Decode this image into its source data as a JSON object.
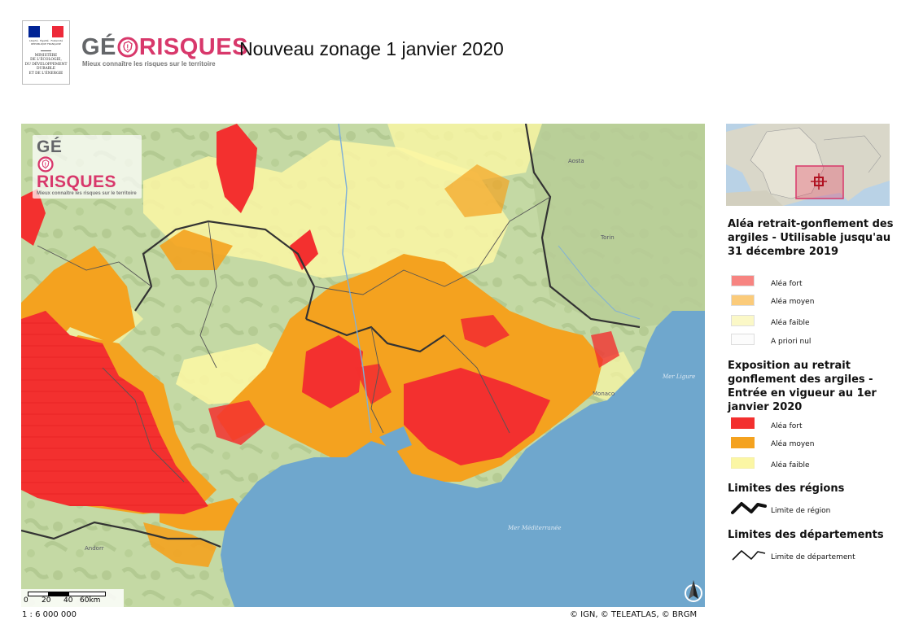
{
  "header": {
    "ministry": {
      "mottos": "Liberté · Égalité · Fraternité",
      "republic": "RÉPUBLIQUE FRANÇAISE",
      "name_lines": [
        "MINISTÈRE",
        "DE L'ÉCOLOGIE,",
        "DU DÉVELOPPEMENT",
        "DURABLE",
        "ET DE L'ÉNERGIE"
      ],
      "flag_colors": [
        "#002395",
        "#ffffff",
        "#ed2939"
      ]
    },
    "logo": {
      "part1": "GÉ",
      "part2": "RISQUES",
      "tagline": "Mieux connaître les risques sur le territoire",
      "colors": {
        "grey": "#646669",
        "pink": "#d8386b"
      }
    },
    "title": "Nouveau zonage 1 janvier 2020"
  },
  "map": {
    "labels": {
      "aosta": "Aosta",
      "torino": "Torin",
      "ligure": "Mer Ligure",
      "monaco": "Monaco",
      "mediterranee": "Mer Méditerranée",
      "andorra": "Andorr"
    },
    "scale_ticks": [
      "0",
      "20",
      "40",
      "60km"
    ],
    "scale_ratio": "1 : 6 000 000",
    "credits": "© IGN, © TELEATLAS, © BRGM",
    "colors": {
      "sea": "#6fa7cd",
      "land": "#c4d9a4",
      "land_dark": "#a6bd82",
      "fort": "#f3302f",
      "moyen": "#f4a21f",
      "faible": "#fbf6a4"
    }
  },
  "legend": {
    "sections": [
      {
        "title_lines": [
          "Aléa retrait-gonflement des",
          "argiles - Utilisable jusqu'au",
          "31 décembre 2019"
        ],
        "items": [
          {
            "label": "Aléa fort",
            "color": "#f78481"
          },
          {
            "label": "Aléa moyen",
            "color": "#fbcb7a"
          },
          {
            "label": "Aléa faible",
            "color": "#fbf8c7"
          },
          {
            "label": "A priori nul",
            "color": "#fcfcfc"
          }
        ]
      },
      {
        "title_lines": [
          "Exposition au retrait",
          "gonflement des argiles -",
          "Entrée en vigueur au 1er",
          "janvier 2020"
        ],
        "items": [
          {
            "label": "Aléa fort",
            "color": "#f3302f"
          },
          {
            "label": "Aléa moyen",
            "color": "#f4a21f"
          },
          {
            "label": "Aléa faible",
            "color": "#fbf6a4"
          }
        ]
      },
      {
        "title_lines": [
          "Limites des régions"
        ],
        "line_label": "Limite de région",
        "line_type": "thick"
      },
      {
        "title_lines": [
          "Limites des départements"
        ],
        "line_label": "Limite de département",
        "line_type": "thin"
      }
    ]
  }
}
